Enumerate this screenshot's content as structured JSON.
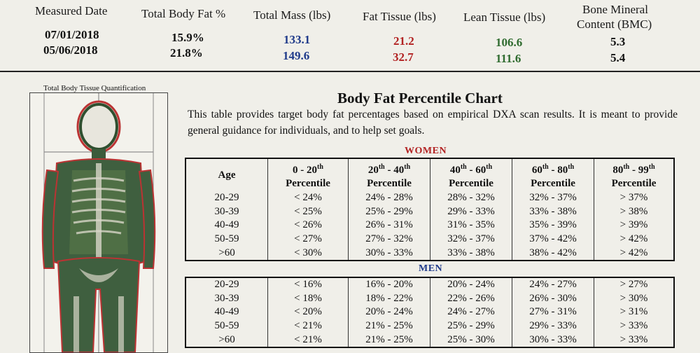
{
  "summary": {
    "headers": [
      "Measured Date",
      "Total Body Fat %",
      "Total Mass (lbs)",
      "Fat Tissue (lbs)",
      "Lean Tissue (lbs)",
      "Bone Mineral",
      "Content (BMC)"
    ],
    "rows": [
      {
        "date": "07/01/2018",
        "fat_pct": "15.9%",
        "mass": "133.1",
        "fat": "21.2",
        "lean": "106.6",
        "bmc": "5.3"
      },
      {
        "date": "05/06/2018",
        "fat_pct": "21.8%",
        "mass": "149.6",
        "fat": "32.7",
        "lean": "111.6",
        "bmc": "5.4"
      }
    ]
  },
  "scan": {
    "title": "Total Body Tissue Quantification"
  },
  "chart": {
    "title": "Body Fat Percentile Chart",
    "intro": "This table provides target body fat percentages based on empirical DXA scan results.  It is meant to provide general guidance for individuals, and to help set goals.",
    "women_label": "WOMEN",
    "men_label": "MEN",
    "col_headers": {
      "age": "Age",
      "c1a": "0 - 20",
      "c1sup": "th",
      "c1b": "",
      "c2a": "20",
      "c2sup": "th",
      "c2b": " - 40",
      "c2sup2": "th",
      "c3a": "40",
      "c3sup": "th",
      "c3b": " - 60",
      "c3sup2": "th",
      "c4a": "60",
      "c4sup": "th",
      "c4b": " - 80",
      "c4sup2": "th",
      "c5a": "80",
      "c5sup": "th",
      "c5b": " - 99",
      "c5sup2": "th",
      "percentile": "Percentile"
    },
    "women": [
      [
        "20-29",
        "< 24%",
        "24% - 28%",
        "28% - 32%",
        "32% - 37%",
        "> 37%"
      ],
      [
        "30-39",
        "< 25%",
        "25% - 29%",
        "29% - 33%",
        "33% - 38%",
        "> 38%"
      ],
      [
        "40-49",
        "< 26%",
        "26% - 31%",
        "31% - 35%",
        "35% - 39%",
        "> 39%"
      ],
      [
        "50-59",
        "< 27%",
        "27% - 32%",
        "32% - 37%",
        "37% - 42%",
        "> 42%"
      ],
      [
        ">60",
        "< 30%",
        "30% - 33%",
        "33% - 38%",
        "38% - 42%",
        "> 42%"
      ]
    ],
    "men": [
      [
        "20-29",
        "< 16%",
        "16% - 20%",
        "20% - 24%",
        "24% - 27%",
        "> 27%"
      ],
      [
        "30-39",
        "< 18%",
        "18% - 22%",
        "22% - 26%",
        "26% - 30%",
        "> 30%"
      ],
      [
        "40-49",
        "< 20%",
        "20% - 24%",
        "24% - 27%",
        "27% - 31%",
        "> 31%"
      ],
      [
        "50-59",
        "< 21%",
        "21% - 25%",
        "25% - 29%",
        "29% - 33%",
        "> 33%"
      ],
      [
        ">60",
        "< 21%",
        "21% - 25%",
        "25% - 30%",
        "30% - 33%",
        "> 33%"
      ]
    ]
  },
  "colors": {
    "mass": "#1f3a8a",
    "fat": "#b22222",
    "lean": "#2f6b2f"
  }
}
